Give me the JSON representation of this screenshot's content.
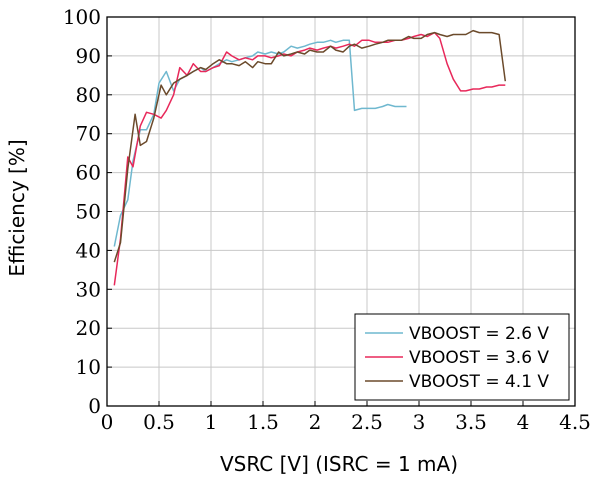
{
  "chart_data": {
    "type": "line",
    "xlabel": "VSRC [V] (ISRC = 1 mA)",
    "ylabel": "Efficiency [%]",
    "xlim": [
      0,
      4.5
    ],
    "ylim": [
      0,
      100
    ],
    "xticks": [
      "0",
      "0.5",
      "1",
      "1.5",
      "2",
      "2.5",
      "3",
      "3.5",
      "4",
      "4.5"
    ],
    "xtick_values": [
      0,
      0.5,
      1,
      1.5,
      2,
      2.5,
      3,
      3.5,
      4,
      4.5
    ],
    "yticks": [
      "0",
      "10",
      "20",
      "30",
      "40",
      "50",
      "60",
      "70",
      "80",
      "90",
      "100"
    ],
    "ytick_values": [
      0,
      10,
      20,
      30,
      40,
      50,
      60,
      70,
      80,
      90,
      100
    ],
    "grid": true,
    "legend_position": "bottom-right",
    "series": [
      {
        "name": "VBOOST = 2.6 V",
        "color": "#6fb8cf",
        "x": [
          0.07,
          0.13,
          0.2,
          0.25,
          0.32,
          0.38,
          0.45,
          0.5,
          0.57,
          0.64,
          0.7,
          0.77,
          0.83,
          0.9,
          0.95,
          1.02,
          1.08,
          1.15,
          1.2,
          1.27,
          1.33,
          1.4,
          1.45,
          1.52,
          1.58,
          1.65,
          1.7,
          1.77,
          1.83,
          1.9,
          1.95,
          2.02,
          2.08,
          2.15,
          2.2,
          2.27,
          2.33,
          2.38,
          2.45,
          2.52,
          2.58,
          2.65,
          2.7,
          2.77,
          2.83,
          2.88
        ],
        "y": [
          41,
          49,
          53,
          63,
          71,
          71,
          75,
          83,
          86,
          81,
          84,
          85,
          86,
          87,
          86,
          87,
          88,
          89,
          88.5,
          89,
          89.5,
          90,
          91,
          90.5,
          91,
          90.5,
          91,
          92.5,
          92,
          92.5,
          93,
          93.5,
          93.5,
          94,
          93.5,
          94,
          94,
          76,
          76.5,
          76.5,
          76.5,
          77,
          77.5,
          77,
          77,
          77
        ]
      },
      {
        "name": "VBOOST = 3.6 V",
        "color": "#e8285a",
        "x": [
          0.07,
          0.13,
          0.2,
          0.25,
          0.32,
          0.38,
          0.45,
          0.52,
          0.57,
          0.64,
          0.7,
          0.77,
          0.83,
          0.9,
          0.95,
          1.02,
          1.08,
          1.15,
          1.2,
          1.27,
          1.33,
          1.4,
          1.45,
          1.52,
          1.58,
          1.65,
          1.7,
          1.77,
          1.83,
          1.9,
          1.95,
          2.02,
          2.08,
          2.15,
          2.2,
          2.27,
          2.33,
          2.38,
          2.45,
          2.52,
          2.58,
          2.65,
          2.7,
          2.77,
          2.83,
          2.9,
          2.95,
          3.02,
          3.08,
          3.15,
          3.2,
          3.27,
          3.33,
          3.4,
          3.45,
          3.52,
          3.58,
          3.65,
          3.7,
          3.77,
          3.83
        ],
        "y": [
          31,
          43,
          64,
          61.5,
          72,
          75.5,
          75,
          74,
          76,
          80,
          87,
          85,
          88,
          86,
          86,
          87,
          87.5,
          91,
          90,
          89,
          89.5,
          89,
          90,
          90,
          89.5,
          90,
          90.5,
          90,
          91,
          91.5,
          92,
          91.5,
          92,
          92.5,
          92,
          92.5,
          93,
          92.5,
          94,
          94,
          93.5,
          93.5,
          93.5,
          94,
          94,
          94.5,
          95,
          95.5,
          95,
          96,
          94.5,
          88,
          84,
          81,
          81,
          81.5,
          81.5,
          82,
          82,
          82.5,
          82.5
        ]
      },
      {
        "name": "VBOOST = 4.1 V",
        "color": "#6b4a2b",
        "x": [
          0.07,
          0.13,
          0.2,
          0.27,
          0.32,
          0.38,
          0.45,
          0.52,
          0.57,
          0.64,
          0.7,
          0.77,
          0.83,
          0.9,
          0.95,
          1.02,
          1.08,
          1.15,
          1.2,
          1.27,
          1.33,
          1.4,
          1.45,
          1.52,
          1.58,
          1.65,
          1.7,
          1.77,
          1.83,
          1.9,
          1.95,
          2.02,
          2.08,
          2.15,
          2.2,
          2.27,
          2.33,
          2.38,
          2.45,
          2.52,
          2.58,
          2.65,
          2.7,
          2.77,
          2.83,
          2.9,
          2.95,
          3.02,
          3.08,
          3.15,
          3.2,
          3.27,
          3.33,
          3.4,
          3.45,
          3.52,
          3.58,
          3.65,
          3.7,
          3.77,
          3.83
        ],
        "y": [
          37,
          42,
          61,
          75,
          67,
          68,
          74,
          82.5,
          80,
          83,
          84,
          85,
          86,
          87,
          86.5,
          88,
          89,
          88,
          88,
          87.5,
          88.5,
          87,
          88.5,
          88,
          88,
          91,
          90,
          90.5,
          91,
          90.5,
          91.5,
          91,
          91,
          92.5,
          91.5,
          91,
          92.5,
          93,
          92,
          92.5,
          93,
          93.5,
          94,
          94,
          94,
          95,
          94.5,
          94.5,
          95.5,
          96,
          95.5,
          95,
          95.5,
          95.5,
          95.5,
          96.5,
          96,
          96,
          96,
          95.5,
          83.5
        ]
      }
    ]
  }
}
